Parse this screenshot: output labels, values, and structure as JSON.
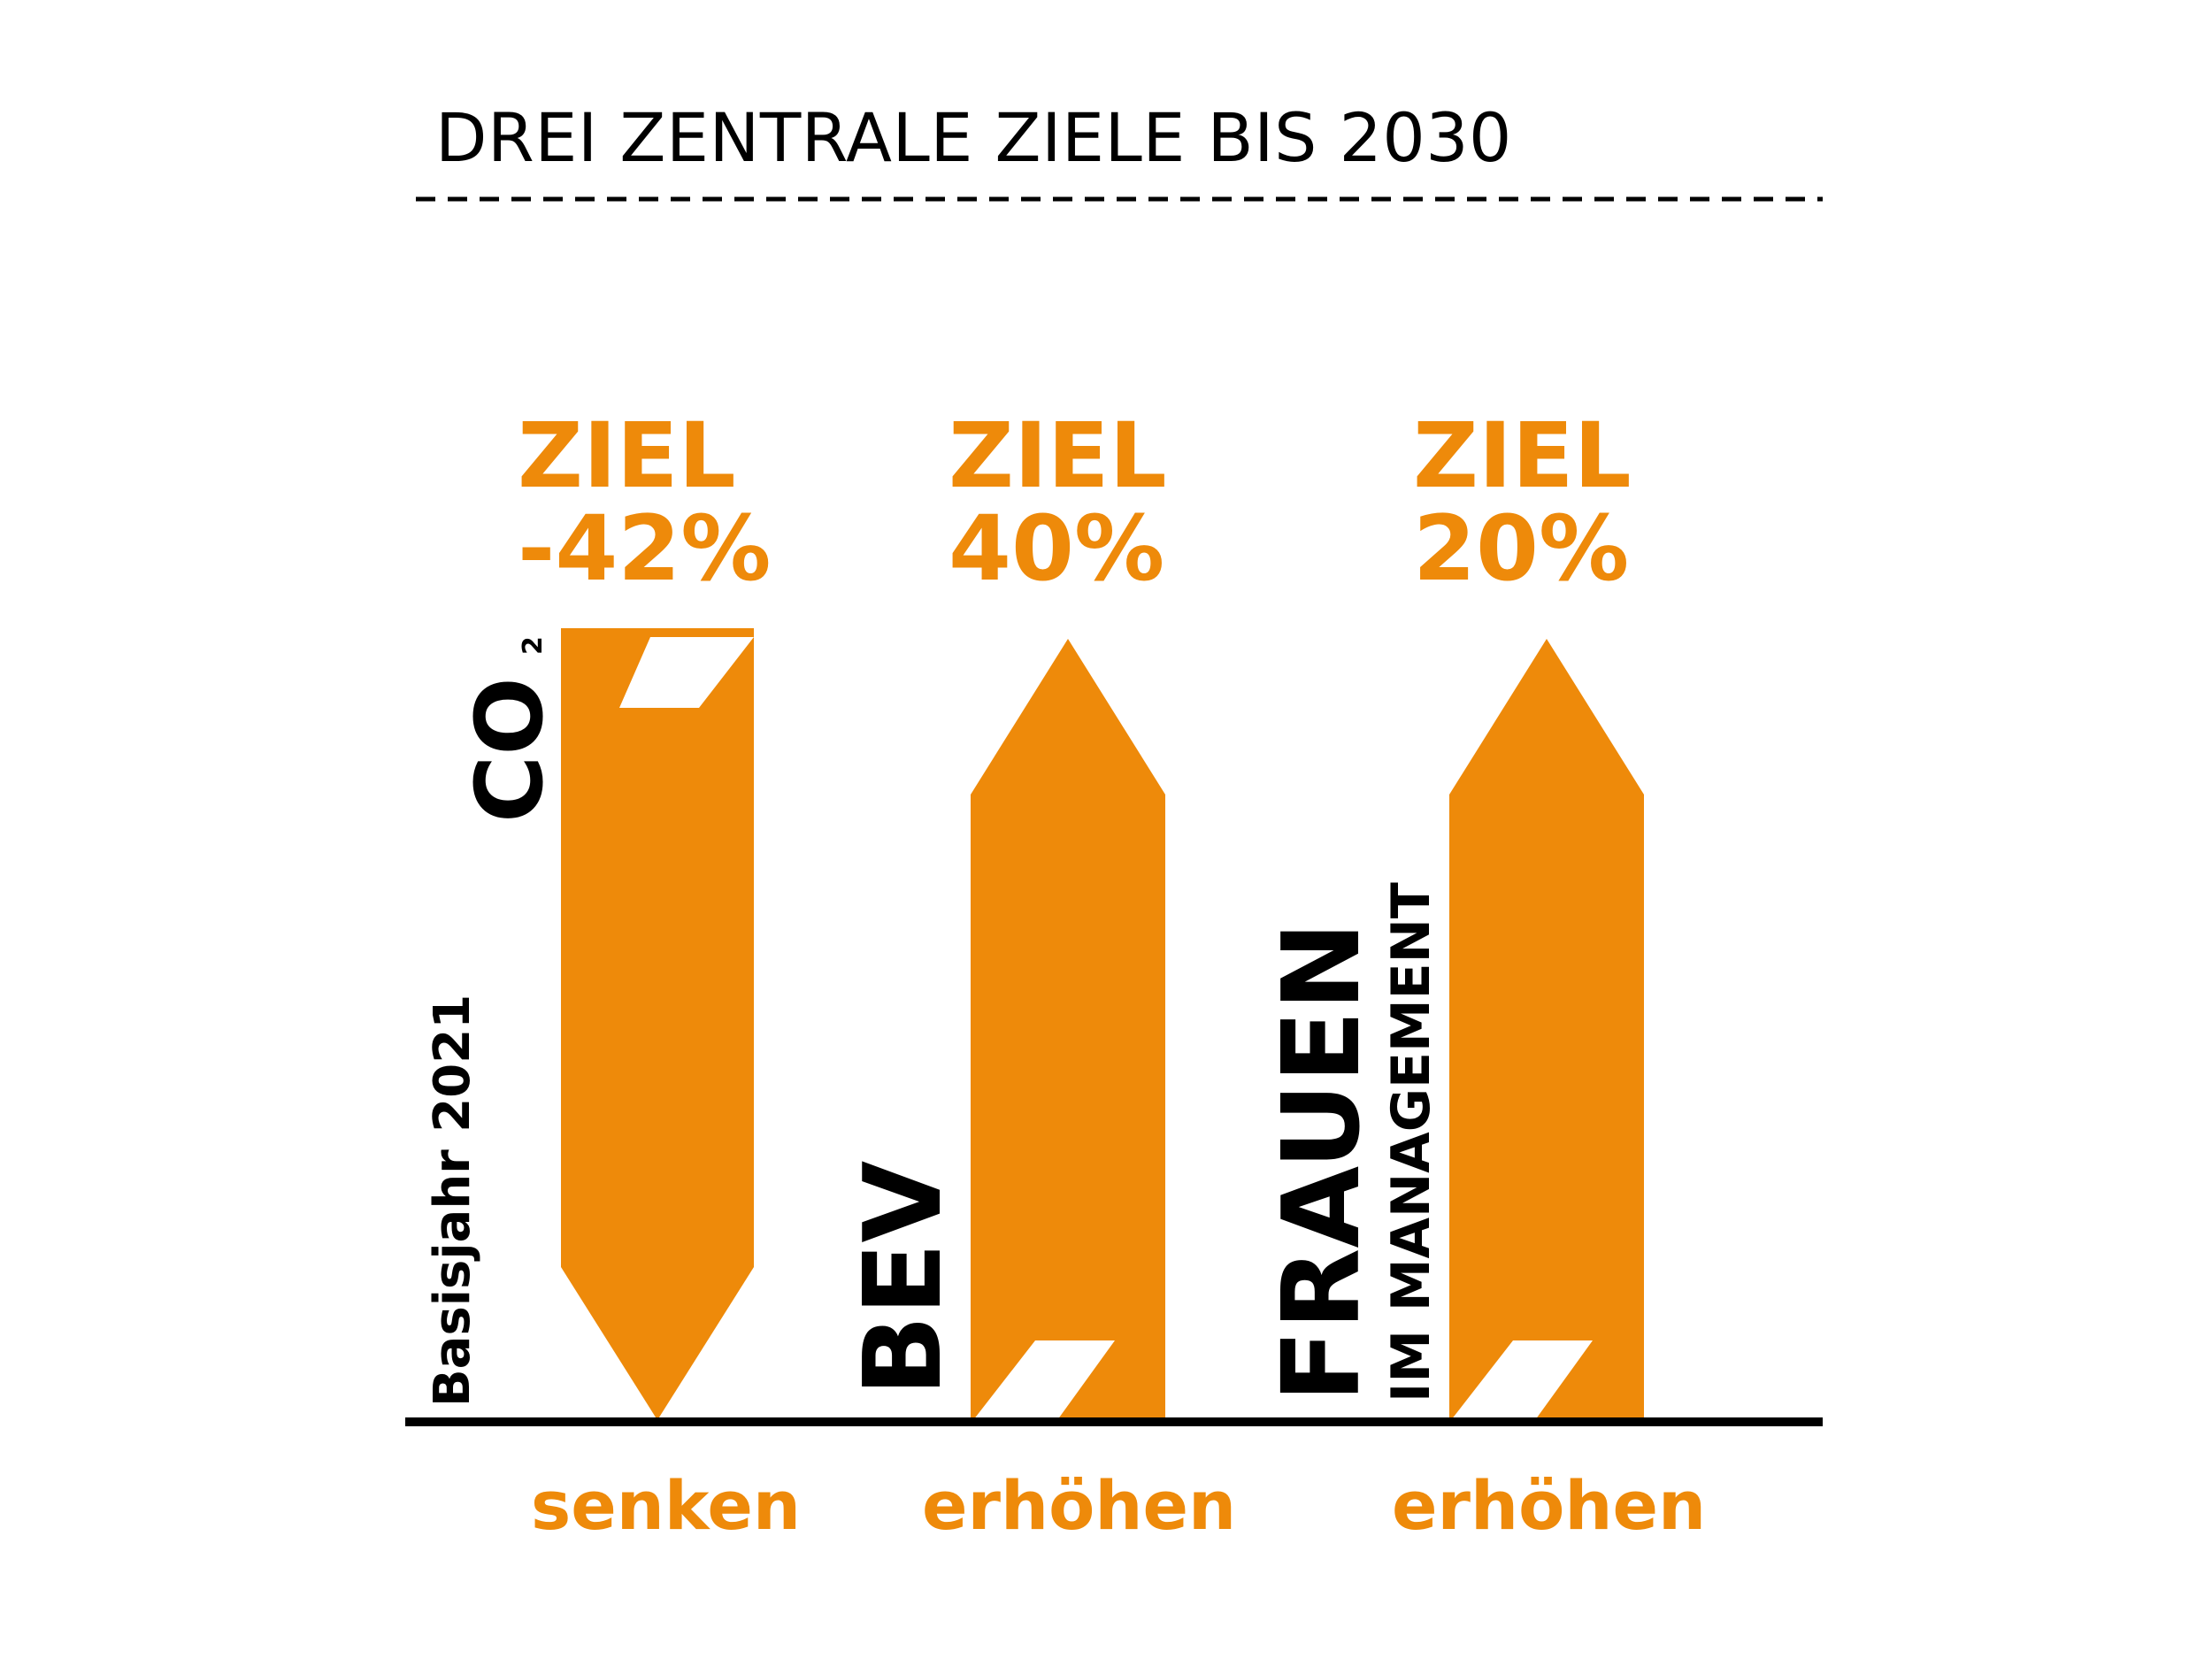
{
  "title": "DREI ZENTRALE ZIELE BIS 2030",
  "colors": {
    "accent": "#ee8a0a",
    "text": "#000000",
    "background": "#ffffff"
  },
  "baseline_label": "Basisjahr 2021",
  "goals": [
    {
      "label": "CO",
      "label_sub": "2",
      "ziel": "ZIEL",
      "value": "-42%",
      "action": "senken",
      "direction": "down"
    },
    {
      "label": "BEV",
      "ziel": "ZIEL",
      "value": "40%",
      "action": "erhöhen",
      "direction": "up"
    },
    {
      "label": "FRAUEN",
      "label_sub": "IM MANAGEMENT",
      "ziel": "ZIEL",
      "value": "20%",
      "action": "erhöhen",
      "direction": "up"
    }
  ]
}
